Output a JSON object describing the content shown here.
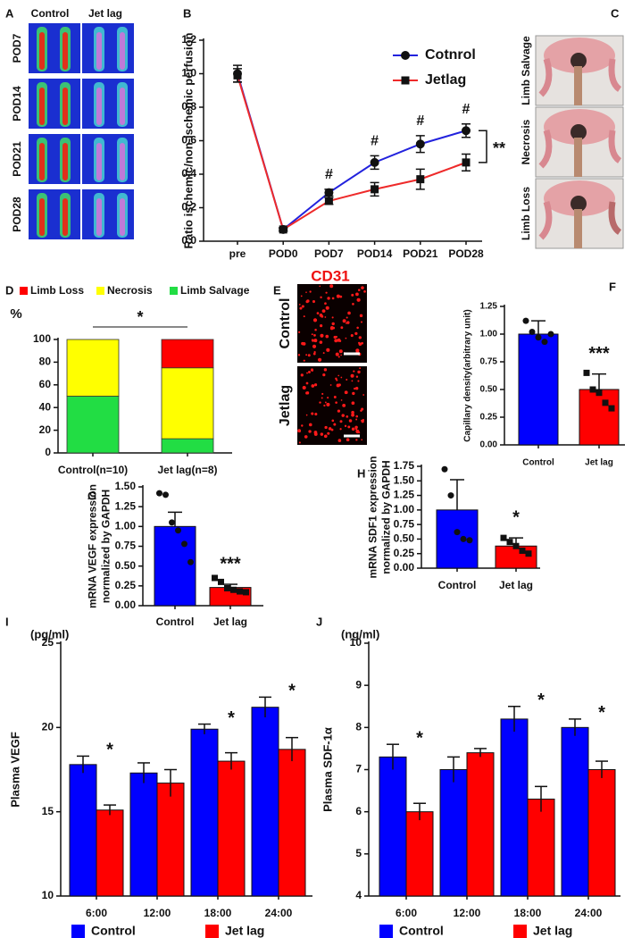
{
  "image_panels": {
    "A": {
      "panel": "A",
      "columns": [
        "Control",
        "Jet lag"
      ],
      "rows": [
        "POD7",
        "POD14",
        "POD21",
        "POD28"
      ]
    },
    "C": {
      "panel": "C",
      "rows": [
        "Limb Salvage",
        "Necrosis",
        "Limb Loss"
      ]
    },
    "E": {
      "panel": "E",
      "title": "CD31",
      "rows": [
        "Control",
        "Jetlag"
      ]
    }
  },
  "chart_data": [
    {
      "panel": "B",
      "type": "line",
      "ylabel": [
        "Ratio ischemic/non-ischemic perfusion"
      ],
      "categories": [
        "pre",
        "POD0",
        "POD7",
        "POD14",
        "POD21",
        "POD28"
      ],
      "series": [
        {
          "name": "Cotnrol",
          "color": "#2222dd",
          "marker": "circle",
          "values": [
            1.0,
            0.07,
            0.29,
            0.47,
            0.58,
            0.66
          ],
          "errors": [
            0.05,
            0.01,
            0.02,
            0.04,
            0.05,
            0.04
          ]
        },
        {
          "name": "Jetlag",
          "color": "#ee2a2a",
          "marker": "square",
          "values": [
            0.99,
            0.07,
            0.24,
            0.31,
            0.37,
            0.47
          ],
          "errors": [
            0.04,
            0.01,
            0.02,
            0.04,
            0.06,
            0.05
          ]
        }
      ],
      "ylim": [
        0,
        1.2
      ],
      "yticks": [
        {
          "value": 0,
          "label": "0.0"
        },
        0.2,
        0.4,
        0.6,
        0.8,
        {
          "value": 1,
          "label": "1.0"
        },
        1.2
      ],
      "annotations": [
        null,
        null,
        "#",
        "#",
        "#",
        "#"
      ],
      "bracket_label": "**",
      "legend": "upper right"
    },
    {
      "panel": "D",
      "type": "stacked_bar",
      "ylabel": [
        "%"
      ],
      "categories": [
        "Control(n=10)",
        "Jet lag(n=8)"
      ],
      "series": [
        {
          "name": "Limb Salvage",
          "color": "#22dd44",
          "values": [
            50,
            12.5
          ]
        },
        {
          "name": "Necrosis",
          "color": "#ffff00",
          "values": [
            50,
            62.5
          ]
        },
        {
          "name": "Limb Loss",
          "color": "#ff0000",
          "values": [
            0,
            25
          ]
        }
      ],
      "ylim": [
        0,
        100
      ],
      "yticks": [
        0,
        20,
        40,
        60,
        80,
        100
      ],
      "annotation": "*",
      "legend": "top"
    },
    {
      "panel": "F",
      "type": "bar",
      "ylabel": [
        "Capillary density(arbitrary unit)"
      ],
      "categories": [
        "Control",
        "Jet lag"
      ],
      "colors": [
        "#0000ff",
        "#ff0000"
      ],
      "values": [
        1.0,
        0.5
      ],
      "errors": [
        0.12,
        0.14
      ],
      "points": [
        [
          1.12,
          1.02,
          0.97,
          0.93,
          1.0
        ],
        [
          0.65,
          0.5,
          0.47,
          0.38,
          0.33
        ]
      ],
      "ylim": [
        0,
        1.25
      ],
      "yticks": [
        {
          "value": 0,
          "label": "0.00"
        },
        {
          "value": 0.25,
          "label": "0.25"
        },
        {
          "value": 0.5,
          "label": "0.50"
        },
        {
          "value": 0.75,
          "label": "0.75"
        },
        {
          "value": 1,
          "label": "1.00"
        },
        {
          "value": 1.25,
          "label": "1.25"
        }
      ],
      "annotation": "***"
    },
    {
      "panel": "G",
      "type": "bar",
      "ylabel": [
        "mRNA VEGF expression",
        "normalized by GAPDH"
      ],
      "categories": [
        "Control",
        "Jet lag"
      ],
      "colors": [
        "#0000ff",
        "#ff0000"
      ],
      "values": [
        1.0,
        0.23
      ],
      "errors": [
        0.18,
        0.04
      ],
      "points": [
        [
          1.42,
          1.4,
          1.05,
          0.95,
          0.78,
          0.55
        ],
        [
          0.35,
          0.3,
          0.22,
          0.2,
          0.18,
          0.17
        ]
      ],
      "ylim": [
        0,
        1.5
      ],
      "yticks": [
        {
          "value": 0,
          "label": "0.00"
        },
        {
          "value": 0.25,
          "label": "0.25"
        },
        {
          "value": 0.5,
          "label": "0.50"
        },
        {
          "value": 0.75,
          "label": "0.75"
        },
        {
          "value": 1,
          "label": "1.00"
        },
        {
          "value": 1.25,
          "label": "1.25"
        },
        {
          "value": 1.5,
          "label": "1.50"
        }
      ],
      "annotation": "***"
    },
    {
      "panel": "H",
      "type": "bar",
      "ylabel": [
        "mRNA SDF1 expression",
        "normalized by GAPDH"
      ],
      "categories": [
        "Control",
        "Jet lag"
      ],
      "colors": [
        "#0000ff",
        "#ff0000"
      ],
      "values": [
        1.0,
        0.38
      ],
      "errors": [
        0.52,
        0.14
      ],
      "points": [
        [
          1.7,
          1.25,
          0.62,
          0.5,
          0.48
        ],
        [
          0.52,
          0.45,
          0.38,
          0.3,
          0.25
        ]
      ],
      "ylim": [
        0,
        1.75
      ],
      "yticks": [
        {
          "value": 0,
          "label": "0.00"
        },
        {
          "value": 0.25,
          "label": "0.25"
        },
        {
          "value": 0.5,
          "label": "0.50"
        },
        {
          "value": 0.75,
          "label": "0.75"
        },
        {
          "value": 1,
          "label": "1.00"
        },
        {
          "value": 1.25,
          "label": "1.25"
        },
        {
          "value": 1.5,
          "label": "1.50"
        },
        {
          "value": 1.75,
          "label": "1.75"
        }
      ],
      "annotation": "*"
    },
    {
      "panel": "I",
      "type": "grouped_bar",
      "ylabel": [
        "Plasma VEGF"
      ],
      "unit": "(pg/ml)",
      "categories": [
        "6:00",
        "12:00",
        "18:00",
        "24:00"
      ],
      "series": [
        {
          "name": "Control",
          "color": "#0000ff",
          "values": [
            17.8,
            17.3,
            19.9,
            21.2
          ],
          "errors": [
            0.5,
            0.6,
            0.3,
            0.6
          ]
        },
        {
          "name": "Jet lag",
          "color": "#ff0000",
          "values": [
            15.1,
            16.7,
            18.0,
            18.7
          ],
          "errors": [
            0.3,
            0.8,
            0.5,
            0.7
          ]
        }
      ],
      "ylim": [
        10,
        25
      ],
      "yticks": [
        10,
        15,
        20,
        25
      ],
      "annotations": [
        "*",
        null,
        "*",
        "*"
      ],
      "legend": "bottom"
    },
    {
      "panel": "J",
      "type": "grouped_bar",
      "ylabel": [
        "Plasma SDF-1α"
      ],
      "unit": "(ng/ml)",
      "categories": [
        "6:00",
        "12:00",
        "18:00",
        "24:00"
      ],
      "series": [
        {
          "name": "Control",
          "color": "#0000ff",
          "values": [
            7.3,
            7.0,
            8.2,
            8.0
          ],
          "errors": [
            0.3,
            0.3,
            0.3,
            0.2
          ]
        },
        {
          "name": "Jet lag",
          "color": "#ff0000",
          "values": [
            6.0,
            7.4,
            6.3,
            7.0
          ],
          "errors": [
            0.2,
            0.1,
            0.3,
            0.2
          ]
        }
      ],
      "ylim": [
        4,
        10
      ],
      "yticks": [
        4,
        5,
        6,
        7,
        8,
        9,
        10
      ],
      "annotations": [
        "*",
        null,
        "*",
        "*"
      ],
      "legend": "bottom"
    }
  ]
}
